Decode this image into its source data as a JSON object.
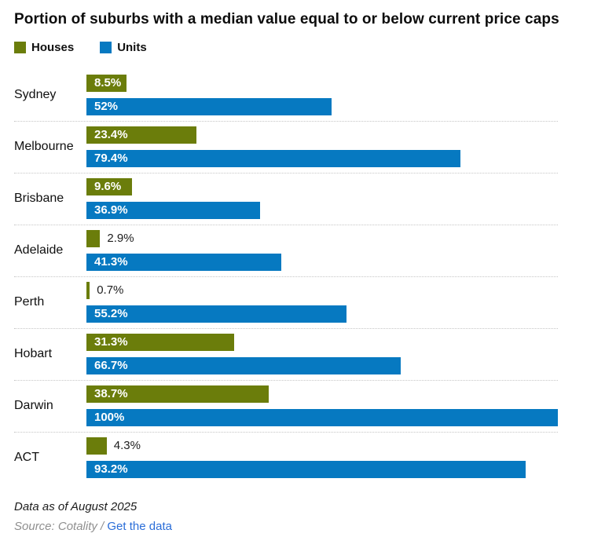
{
  "title": "Portion of suburbs with a median value equal to or below current price caps",
  "legend": [
    {
      "label": "Houses",
      "color": "#6b7d0b"
    },
    {
      "label": "Units",
      "color": "#0679c1"
    }
  ],
  "chart_data": {
    "type": "bar",
    "orientation": "horizontal",
    "title": "Portion of suburbs with a median value equal to or below current price caps",
    "xlabel": "",
    "ylabel": "",
    "xlim": [
      0,
      100
    ],
    "grid": false,
    "legend_position": "top-left",
    "categories": [
      "Sydney",
      "Melbourne",
      "Brisbane",
      "Adelaide",
      "Perth",
      "Hobart",
      "Darwin",
      "ACT"
    ],
    "series": [
      {
        "name": "Houses",
        "color": "#6b7d0b",
        "values": [
          8.5,
          23.4,
          9.6,
          2.9,
          0.7,
          31.3,
          38.7,
          4.3
        ],
        "labels": [
          "8.5%",
          "23.4%",
          "9.6%",
          "2.9%",
          "0.7%",
          "31.3%",
          "38.7%",
          "4.3%"
        ]
      },
      {
        "name": "Units",
        "color": "#0679c1",
        "values": [
          52,
          79.4,
          36.9,
          41.3,
          55.2,
          66.7,
          100,
          93.2
        ],
        "labels": [
          "52%",
          "79.4%",
          "36.9%",
          "41.3%",
          "55.2%",
          "66.7%",
          "100%",
          "93.2%"
        ]
      }
    ]
  },
  "footer": {
    "data_as_of": "Data as of August 2025",
    "source_prefix": "Source: Cotality /",
    "link_label": "Get the data"
  },
  "colors": {
    "houses": "#6b7d0b",
    "units": "#0679c1",
    "separator": "#c6c6c6",
    "link": "#2a6dd8",
    "source_gray": "#8f8f8f"
  }
}
